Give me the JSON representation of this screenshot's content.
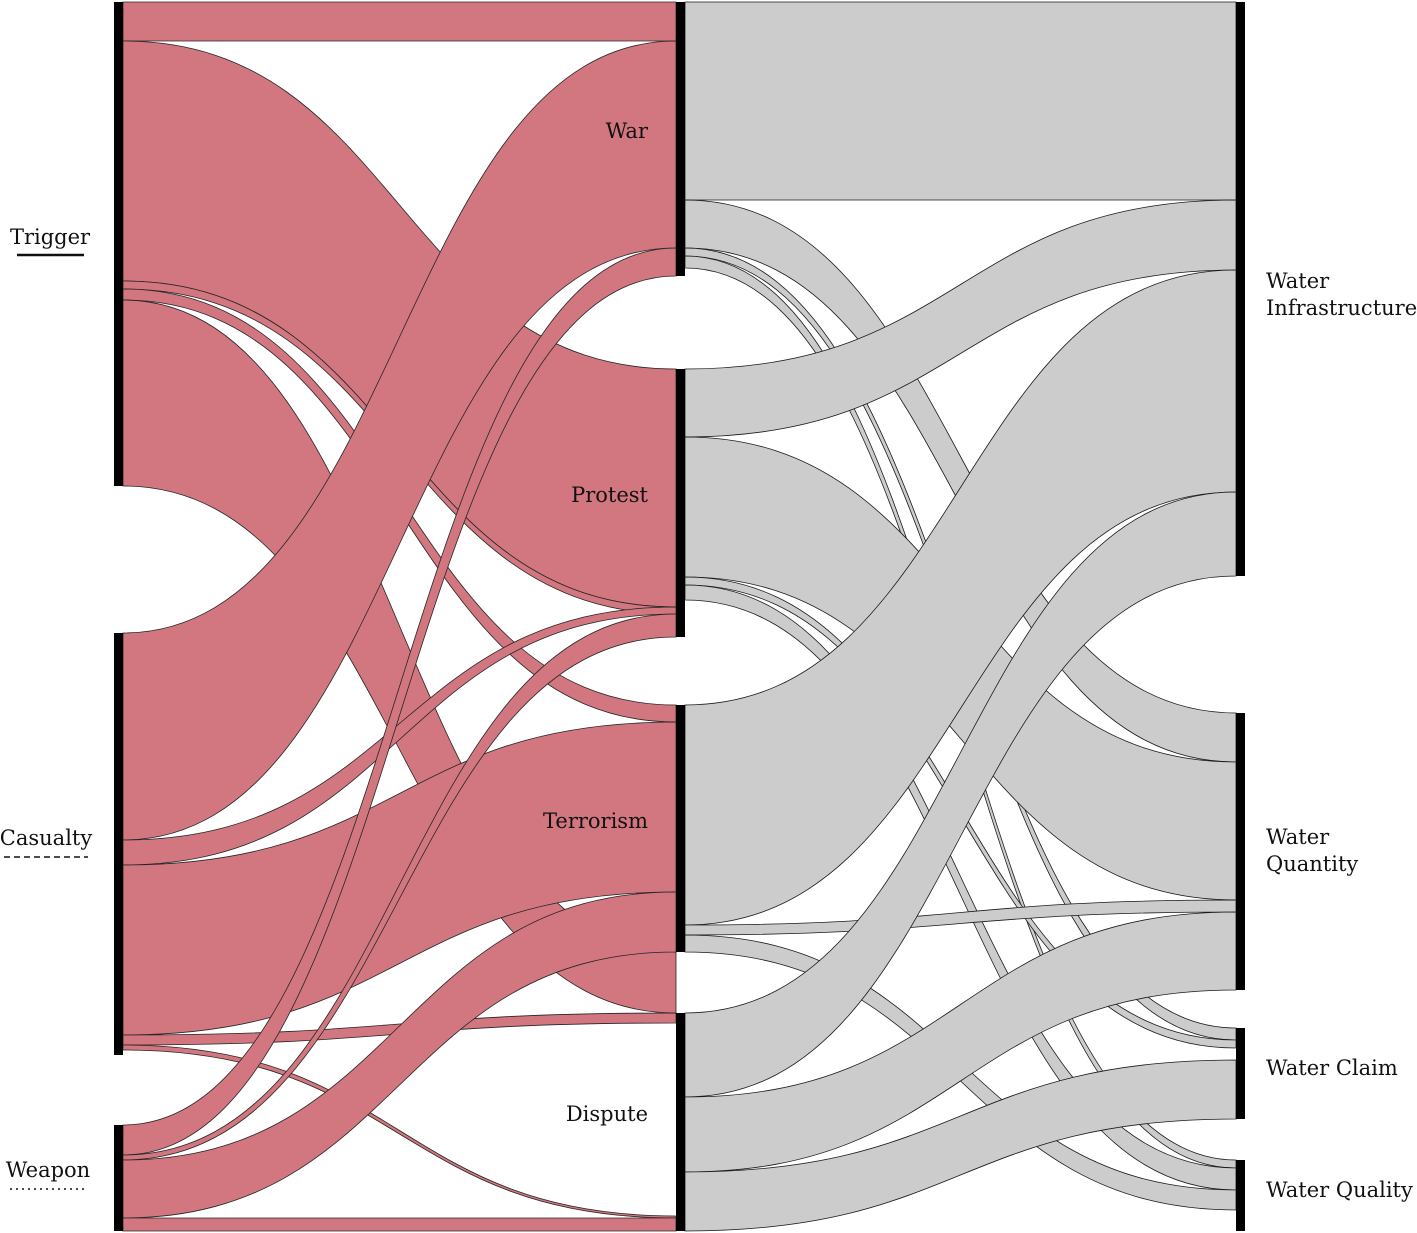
{
  "colors": {
    "red_flow": "#d0707a",
    "grey_flow": "#cccccc",
    "node_bar": "#000000",
    "text": "#111111"
  },
  "labels": {
    "left": {
      "trigger": "Trigger",
      "casualty": "Casualty",
      "weapon": "Weapon"
    },
    "middle": {
      "war": "War",
      "protest": "Protest",
      "terrorism": "Terrorism",
      "dispute": "Dispute"
    },
    "right": {
      "infra_line1": "Water",
      "infra_line2": "Infrastructure",
      "quantity_line1": "Water",
      "quantity_line2": "Quantity",
      "claim": "Water Claim",
      "quality": "Water Quality"
    }
  },
  "legend_styles": {
    "trigger": "solid",
    "casualty": "dashed",
    "weapon": "dotted"
  }
}
